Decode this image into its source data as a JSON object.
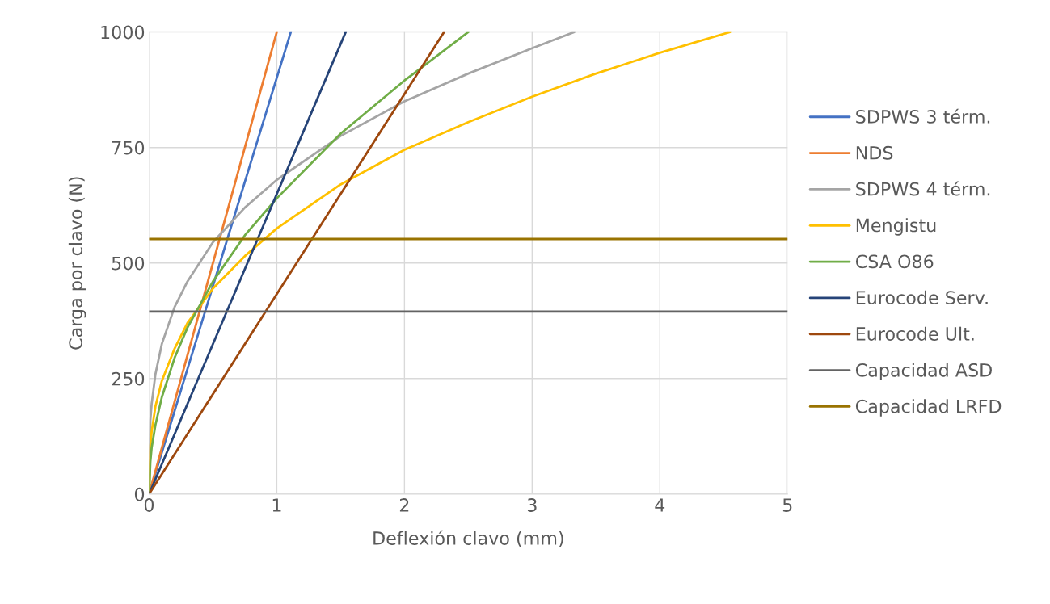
{
  "chart_data": {
    "type": "line",
    "xlabel": "Deflexión clavo (mm)",
    "ylabel": "Carga por clavo (N)",
    "xlim": [
      0,
      5
    ],
    "xticks": [
      0,
      1,
      2,
      3,
      4,
      5
    ],
    "ylim": [
      0,
      1000
    ],
    "yticks": [
      0,
      250,
      500,
      750,
      1000
    ],
    "grid": true,
    "legend": "right",
    "line_style": "solid",
    "series": [
      {
        "name": "SDPWS 3 térm.",
        "color": "#4472c4",
        "x": [
          0,
          1.11
        ],
        "values": [
          0,
          1000
        ]
      },
      {
        "name": "NDS",
        "color": "#ed7d31",
        "x": [
          0,
          1.0
        ],
        "values": [
          0,
          1000
        ]
      },
      {
        "name": "SDPWS 4 térm.",
        "color": "#a5a5a5",
        "x": [
          0,
          0.01,
          0.02,
          0.05,
          0.1,
          0.2,
          0.3,
          0.5,
          0.75,
          1,
          1.5,
          2,
          2.5,
          3,
          3.33
        ],
        "values": [
          0,
          160,
          195,
          260,
          325,
          405,
          460,
          545,
          620,
          680,
          775,
          850,
          910,
          965,
          1000
        ]
      },
      {
        "name": "Mengistu",
        "color": "#ffc000",
        "x": [
          0,
          0.01,
          0.02,
          0.05,
          0.1,
          0.2,
          0.3,
          0.5,
          0.75,
          1,
          1.5,
          2,
          2.5,
          3,
          3.5,
          4,
          4.55
        ],
        "values": [
          0,
          105,
          135,
          190,
          245,
          315,
          370,
          445,
          515,
          575,
          670,
          745,
          805,
          860,
          910,
          955,
          1000
        ]
      },
      {
        "name": "CSA O86",
        "color": "#70ad47",
        "x": [
          0,
          0.01,
          0.02,
          0.05,
          0.1,
          0.2,
          0.3,
          0.5,
          0.75,
          1,
          1.5,
          2,
          2.5
        ],
        "values": [
          0,
          70,
          100,
          150,
          210,
          295,
          360,
          460,
          560,
          640,
          780,
          895,
          1000
        ]
      },
      {
        "name": "Eurocode Serv.",
        "color": "#264478",
        "x": [
          0,
          1.54
        ],
        "values": [
          0,
          1000
        ]
      },
      {
        "name": "Eurocode Ult.",
        "color": "#9e480e",
        "x": [
          0,
          2.31
        ],
        "values": [
          0,
          1000
        ]
      },
      {
        "name": "Capacidad ASD",
        "color": "#636363",
        "x": [
          0,
          5
        ],
        "values": [
          395,
          395
        ]
      },
      {
        "name": "Capacidad LRFD",
        "color": "#997300",
        "x": [
          0,
          5
        ],
        "values": [
          552,
          552
        ]
      }
    ]
  }
}
